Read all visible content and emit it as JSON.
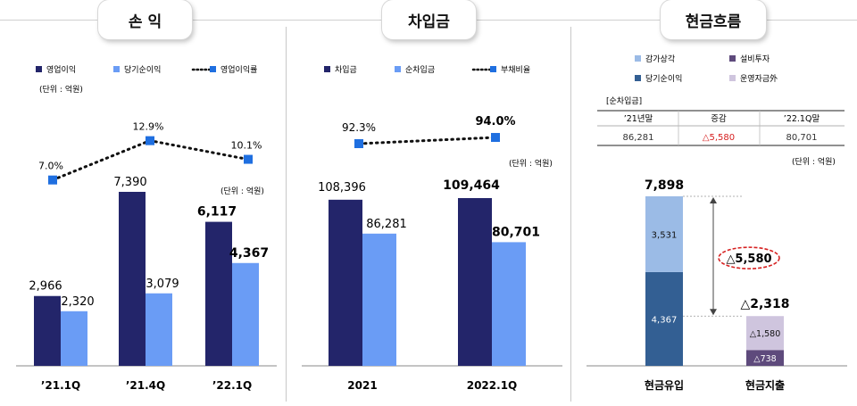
{
  "colors": {
    "dark": "#23256a",
    "light": "#6a9cf5",
    "marker": "#1f6fe0",
    "dep": "#9bbbe6",
    "ni": "#335f93",
    "capex": "#5e4a7c",
    "other": "#cfc5de",
    "red": "#d62020"
  },
  "chart_data": [
    {
      "type": "bar",
      "title": "손 익",
      "categories": [
        "’21.1Q",
        "’21.4Q",
        "’22.1Q"
      ],
      "unit_note": "(단위 : 억원)",
      "unit_note2": "(단위 : 억원)",
      "series": [
        {
          "name": "영업이익",
          "values": [
            2966,
            7390,
            6117
          ],
          "labels": [
            "2,966",
            "7,390",
            "6,117"
          ]
        },
        {
          "name": "당기순이익",
          "values": [
            2320,
            3079,
            4367
          ],
          "labels": [
            "2,320",
            "3,079",
            "4,367"
          ]
        },
        {
          "name": "영업이익률",
          "type": "line",
          "values": [
            7.0,
            12.9,
            10.1
          ],
          "labels": [
            "7.0%",
            "12.9%",
            "10.1%"
          ]
        }
      ]
    },
    {
      "type": "bar",
      "title": "차입금",
      "categories": [
        "2021",
        "2022.1Q"
      ],
      "unit_note": "(단위 : 억원)",
      "series": [
        {
          "name": "차입금",
          "values": [
            108396,
            109464
          ],
          "labels": [
            "108,396",
            "109,464"
          ]
        },
        {
          "name": "순차입금",
          "values": [
            86281,
            80701
          ],
          "labels": [
            "86,281",
            "80,701"
          ]
        },
        {
          "name": "부채비율",
          "type": "line",
          "values": [
            92.3,
            94.0
          ],
          "labels": [
            "92.3%",
            "94.0%"
          ]
        }
      ]
    },
    {
      "type": "bar",
      "title": "현금흐름",
      "categories": [
        "현금유입",
        "현금지출"
      ],
      "unit_note": "(단위 : 억원)",
      "legend": [
        "감가상각",
        "설비투자",
        "당기순이익",
        "운영자금外"
      ],
      "inflow": {
        "total": 7898,
        "total_label": "7,898",
        "segments": [
          {
            "name": "당기순이익",
            "value": 4367,
            "label": "4,367"
          },
          {
            "name": "감가상각",
            "value": 3531,
            "label": "3,531"
          }
        ]
      },
      "outflow": {
        "total": 2318,
        "total_label": "△2,318",
        "segments": [
          {
            "name": "설비투자",
            "value": 738,
            "label": "△738"
          },
          {
            "name": "운영자금外",
            "value": 1580,
            "label": "△1,580"
          }
        ]
      },
      "difference_label": "△5,580",
      "table": {
        "caption": "[순차입금]",
        "headers": [
          "’21년말",
          "증감",
          "’22.1Q말"
        ],
        "row": [
          "86,281",
          "△5,580",
          "80,701"
        ]
      }
    }
  ]
}
